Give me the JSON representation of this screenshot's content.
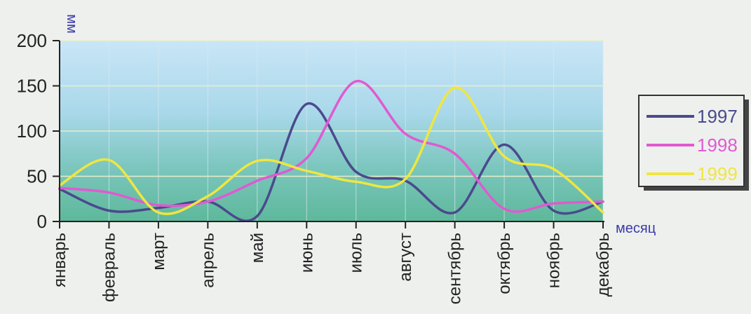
{
  "chart_data": {
    "type": "line",
    "categories": [
      "январь",
      "февраль",
      "март",
      "апрель",
      "май",
      "июнь",
      "июль",
      "август",
      "сентябрь",
      "октябрь",
      "ноябрь",
      "декабрь"
    ],
    "ylabel": "мм",
    "xlabel": "месяц",
    "ylim": [
      0,
      200
    ],
    "yticks": [
      "0",
      "50",
      "100",
      "150",
      "200"
    ],
    "grid": true,
    "legend_position": "right",
    "series": [
      {
        "name": "1997",
        "color": "#4a4a8c",
        "values": [
          36,
          12,
          15,
          22,
          6,
          130,
          55,
          45,
          10,
          85,
          12,
          22
        ]
      },
      {
        "name": "1998",
        "color": "#e05ad0",
        "values": [
          37,
          32,
          18,
          22,
          45,
          70,
          155,
          97,
          75,
          14,
          20,
          22
        ]
      },
      {
        "name": "1999",
        "color": "#f0e640",
        "values": [
          40,
          68,
          10,
          28,
          67,
          56,
          44,
          47,
          148,
          72,
          58,
          10
        ]
      }
    ]
  }
}
